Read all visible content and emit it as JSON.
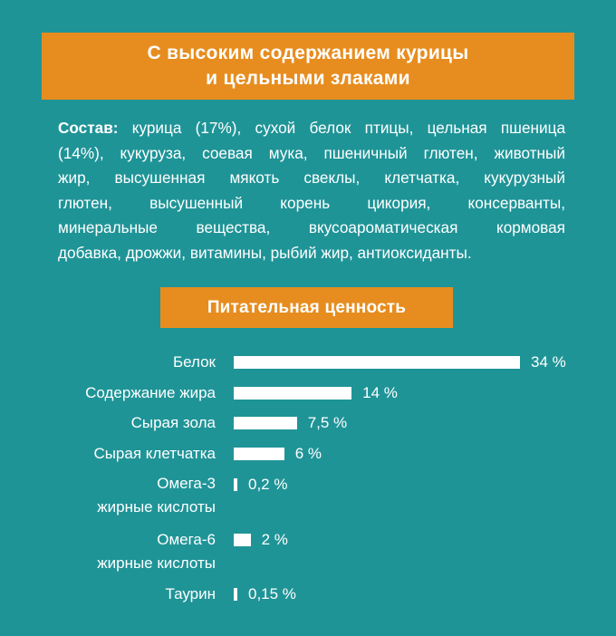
{
  "title": {
    "line1": "С высоким содержанием курицы",
    "line2": "и цельными злаками"
  },
  "composition": {
    "label": "Состав:",
    "lines": [
      " курица (17%), сухой белок птицы, цельная пшеница",
      "(14%), кукуруза, соевая мука, пшеничный глютен, животный",
      "жир, высушенная мякоть свеклы, клетчатка, кукурузный",
      "глютен, высушенный корень цикория, консерванты,",
      "минеральные вещества, вкусоароматическая кормовая",
      "добавка, дрожжи, витамины, рыбий жир, антиоксиданты."
    ]
  },
  "chart_heading": "Питательная ценность",
  "chart_data": {
    "type": "bar",
    "orientation": "horizontal",
    "title": "Питательная ценность",
    "categories": [
      [
        "Белок"
      ],
      [
        "Содержание жира"
      ],
      [
        "Сырая зола"
      ],
      [
        "Сырая клетчатка"
      ],
      [
        "Омега-3",
        "жирные кислоты"
      ],
      [
        "Омега-6",
        "жирные кислоты"
      ],
      [
        "Таурин"
      ]
    ],
    "values": [
      34,
      14,
      7.5,
      6,
      0.2,
      2,
      0.15
    ],
    "value_labels": [
      "34 %",
      "14 %",
      "7,5 %",
      "6 %",
      "0,2 %",
      "2 %",
      "0,15 %"
    ],
    "unit": "%",
    "xlim": [
      0,
      34
    ],
    "bar_color": "#ffffff"
  },
  "colors": {
    "background": "#1f9497",
    "accent": "#e78d1f",
    "text": "#ffffff"
  }
}
